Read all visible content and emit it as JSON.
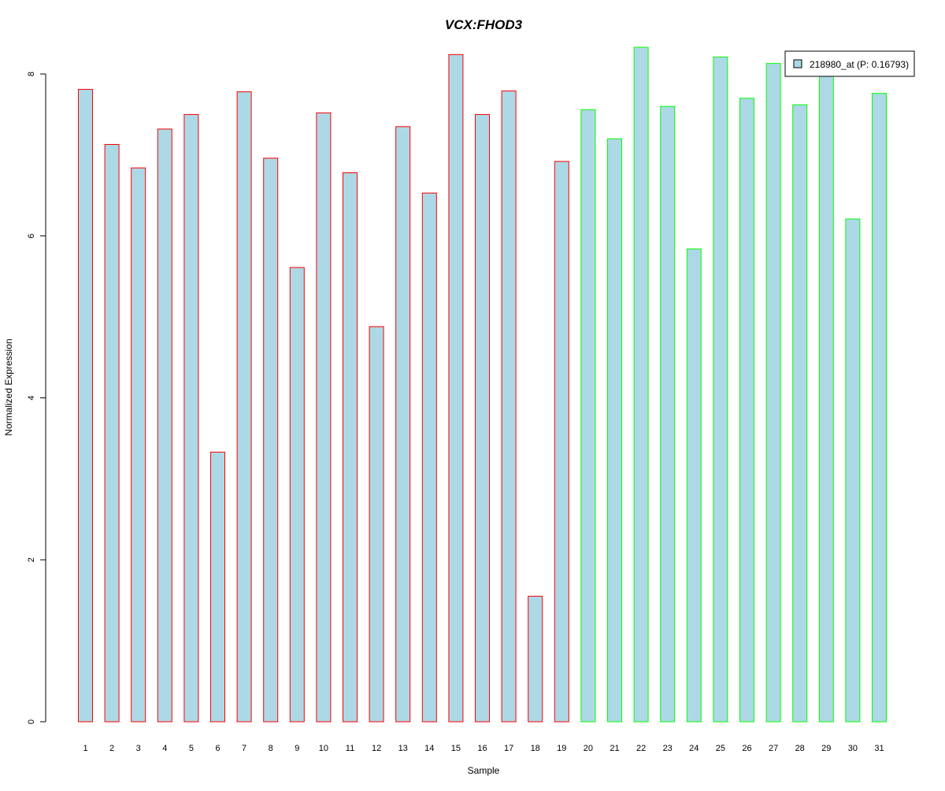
{
  "chart_data": {
    "type": "bar",
    "title": "VCX:FHOD3",
    "xlabel": "Sample",
    "ylabel": "Normalized Expression",
    "ylim": [
      0,
      8.4
    ],
    "yticks": [
      0,
      2,
      4,
      6,
      8
    ],
    "grid": false,
    "legend_position": "top-right",
    "legend": [
      "218980_at (P: 0.16793)"
    ],
    "categories": [
      "1",
      "2",
      "3",
      "4",
      "5",
      "6",
      "7",
      "8",
      "9",
      "10",
      "11",
      "12",
      "13",
      "14",
      "15",
      "16",
      "17",
      "18",
      "19",
      "20",
      "21",
      "22",
      "23",
      "24",
      "25",
      "26",
      "27",
      "28",
      "29",
      "30",
      "31"
    ],
    "series": [
      {
        "name": "218980_at (P: 0.16793)",
        "values": [
          7.81,
          7.13,
          6.84,
          7.32,
          7.5,
          3.33,
          7.78,
          6.96,
          5.61,
          7.52,
          6.78,
          4.88,
          7.35,
          6.53,
          8.24,
          7.5,
          7.79,
          1.55,
          6.92,
          7.56,
          7.2,
          8.33,
          7.6,
          5.84,
          8.21,
          7.7,
          8.13,
          7.62,
          8.07,
          6.21,
          7.76
        ]
      }
    ],
    "groups": [
      1,
      1,
      1,
      1,
      1,
      1,
      1,
      1,
      1,
      1,
      1,
      1,
      1,
      1,
      1,
      1,
      1,
      1,
      1,
      2,
      2,
      2,
      2,
      2,
      2,
      2,
      2,
      2,
      2,
      2,
      2
    ],
    "colors": {
      "bar_fill": "#add8e6",
      "group_1_border": "#ff0000",
      "group_2_border": "#00ff00",
      "title": "#0000cd",
      "axis": "#000000"
    }
  }
}
